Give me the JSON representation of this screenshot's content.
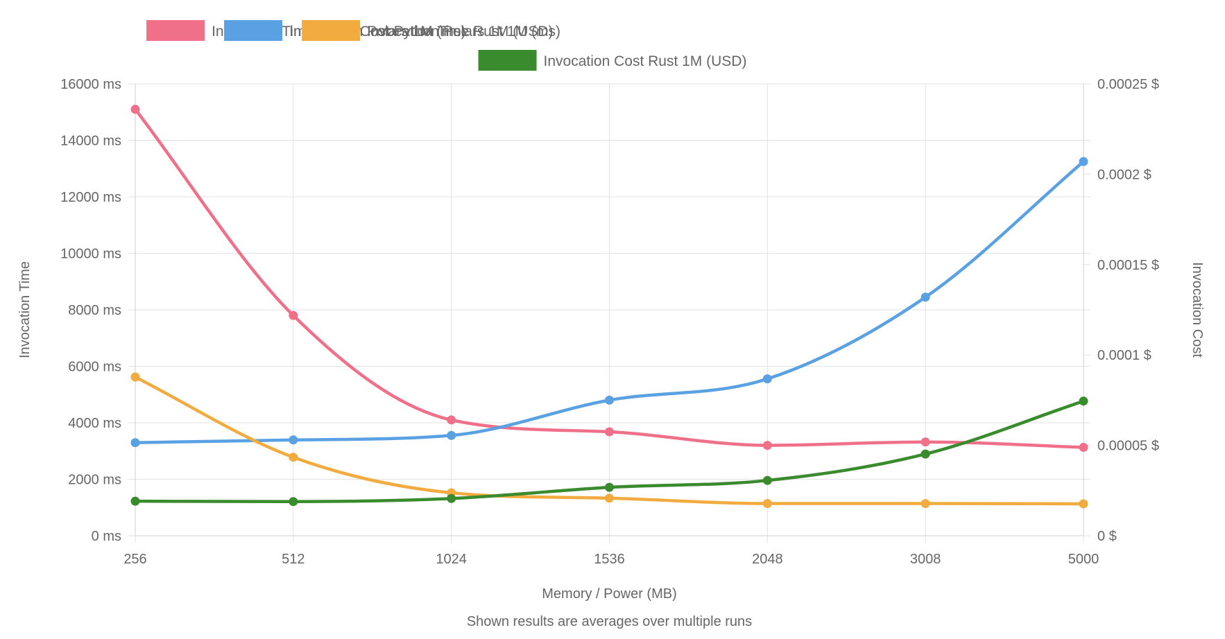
{
  "chart_data": {
    "type": "line",
    "xlabel": "Memory / Power (MB)",
    "subtitle": "Shown results are averages over multiple runs",
    "categories": [
      "256",
      "512",
      "1024",
      "1536",
      "2048",
      "3008",
      "5000"
    ],
    "y_left": {
      "label": "Invocation Time",
      "unit": "ms",
      "ylim": [
        0,
        16000
      ],
      "ticks": [
        "16000 ms",
        "14000 ms",
        "12000 ms",
        "10000 ms",
        "8000 ms",
        "6000 ms",
        "4000 ms",
        "2000 ms",
        "0 ms"
      ],
      "tick_values": [
        16000,
        14000,
        12000,
        10000,
        8000,
        6000,
        4000,
        2000,
        0
      ]
    },
    "y_right": {
      "label": "Invocation Cost",
      "unit": "$",
      "ylim": [
        0,
        0.00025
      ],
      "ticks": [
        "0.00025 $",
        "0.0002 $",
        "0.00015 $",
        "0.0001 $",
        "0.00005 $",
        "0 $"
      ],
      "tick_values": [
        0.00025,
        0.0002,
        0.00015,
        0.0001,
        5e-05,
        0
      ]
    },
    "grid": true,
    "legend_position": "top",
    "series": [
      {
        "name": "Invocation Time Python Polars 1M (ms)",
        "axis": "left",
        "color": "#ef7088",
        "values": [
          15100,
          7800,
          4100,
          3680,
          3200,
          3320,
          3130
        ]
      },
      {
        "name": "Invocation Cost Python Polars 1M (USD)",
        "axis": "right",
        "color": "#5aa1e3",
        "values": [
          5.15e-05,
          5.3e-05,
          5.55e-05,
          7.5e-05,
          8.68e-05,
          0.000132,
          0.000207
        ]
      },
      {
        "name": "Invocation Time Rust 1M (ms)",
        "axis": "left",
        "color": "#f2ab3f",
        "values": [
          5620,
          2780,
          1520,
          1330,
          1140,
          1140,
          1130
        ]
      },
      {
        "name": "Invocation Cost Rust 1M (USD)",
        "axis": "right",
        "color": "#3a8a2e",
        "values": [
          1.91e-05,
          1.89e-05,
          2.06e-05,
          2.68e-05,
          3.06e-05,
          4.52e-05,
          7.45e-05
        ]
      }
    ]
  }
}
